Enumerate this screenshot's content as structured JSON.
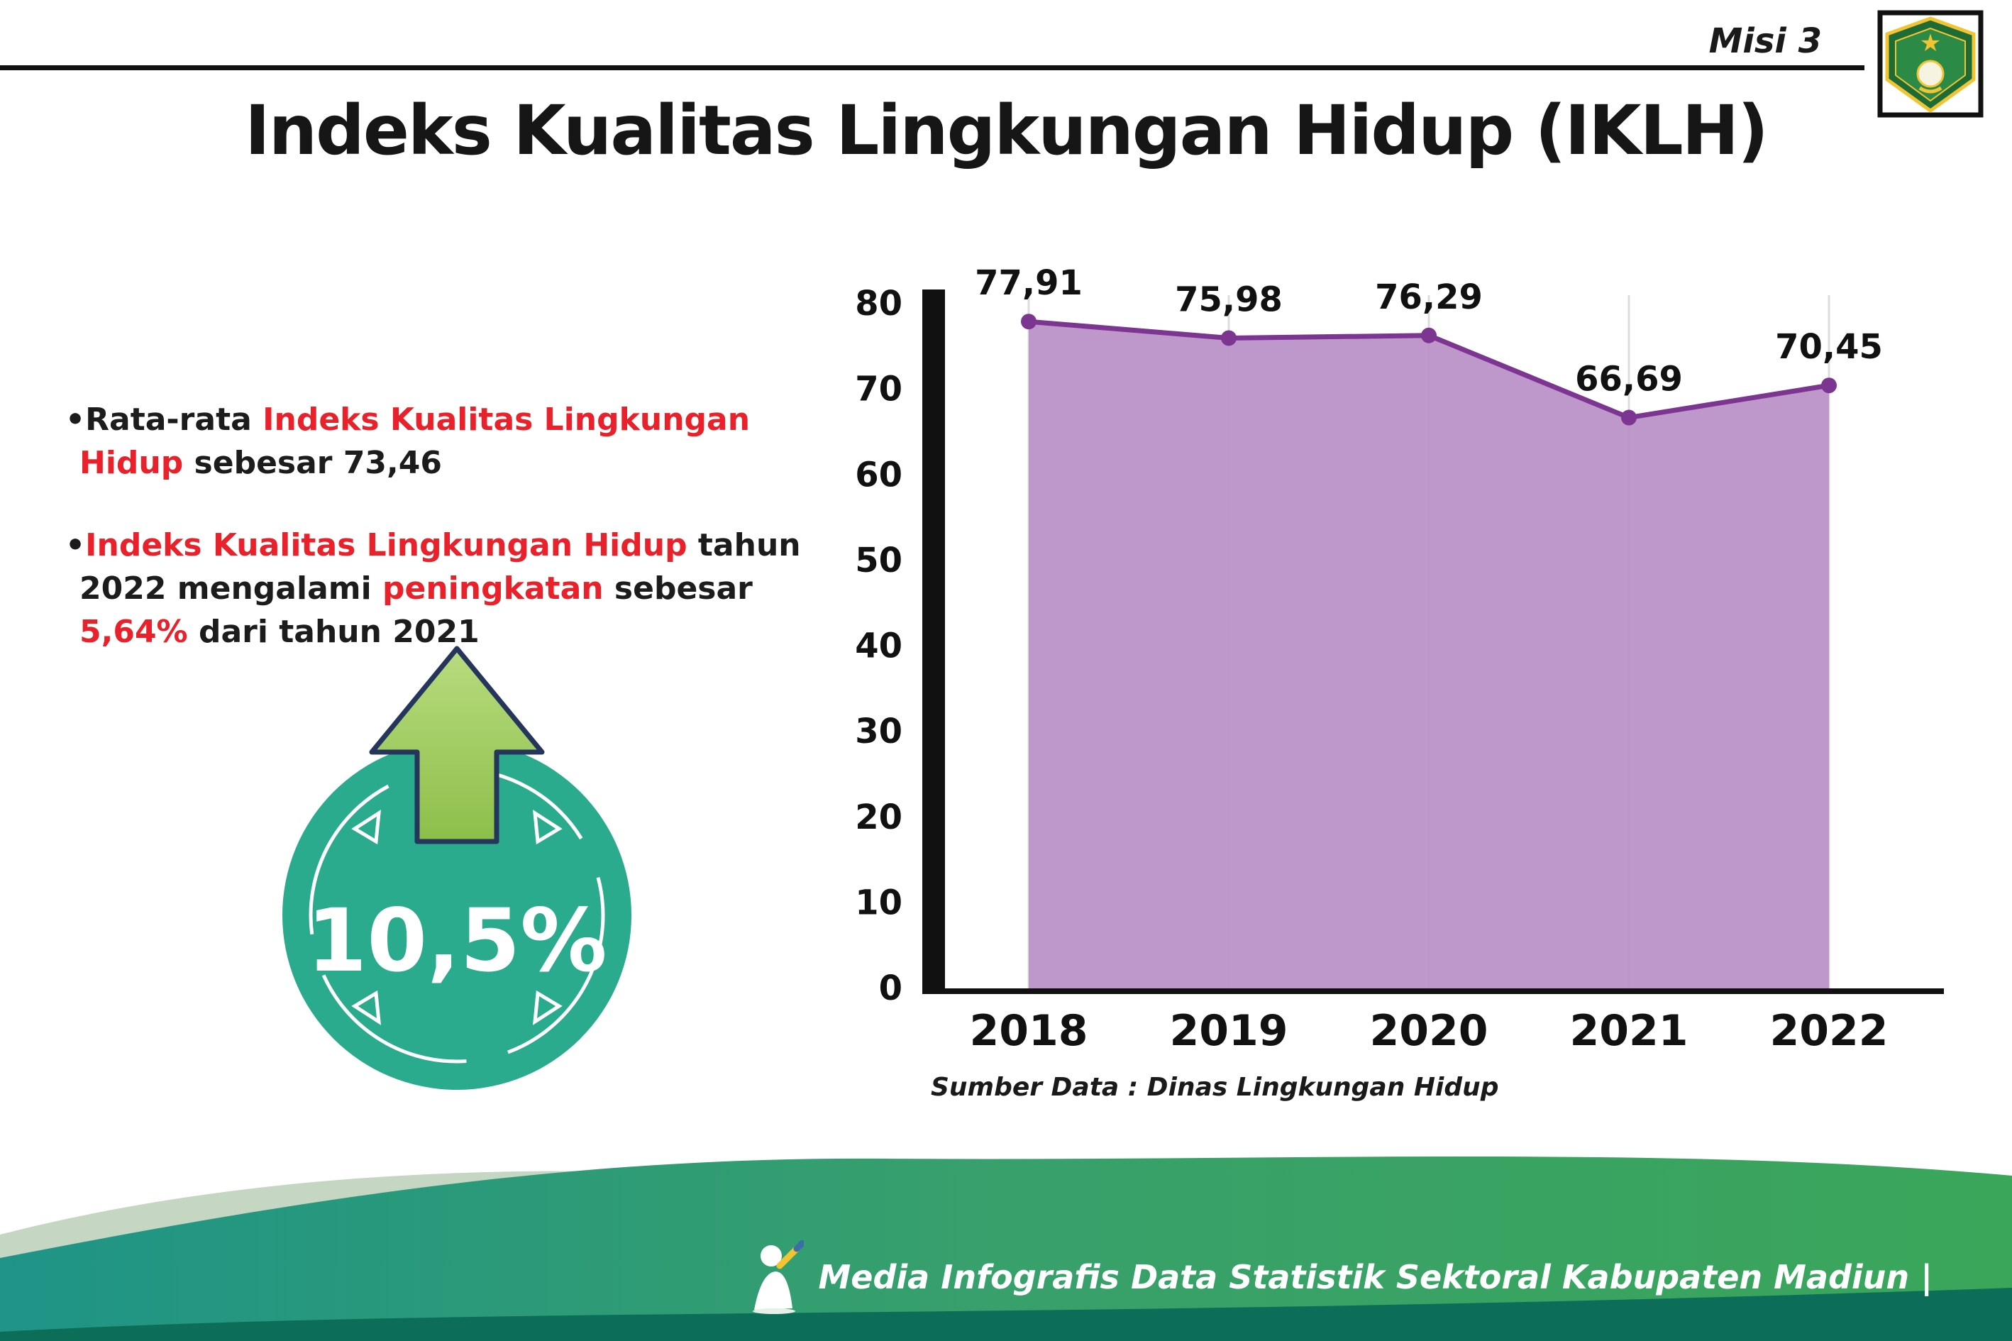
{
  "header": {
    "misi_label": "Misi 3",
    "title": "Indeks Kualitas Lingkungan Hidup (IKLH)",
    "logo_icon": "kabupaten-madiun-crest"
  },
  "bullets": {
    "bullet_glyph": "•",
    "b1_parts": [
      {
        "t": "Rata-rata "
      },
      {
        "t": "Indeks Kualitas Lingkungan Hidup"
      },
      {
        "t": " sebesar 73,46"
      }
    ],
    "b2_parts": [
      {
        "t": "Indeks Kualitas Lingkungan Hidup"
      },
      {
        "t": " tahun 2022 mengalami "
      },
      {
        "t": "peningkatan"
      },
      {
        "t": " sebesar "
      },
      {
        "t": "5,64%"
      },
      {
        "t": " dari tahun 2021"
      }
    ]
  },
  "badge": {
    "value": "10,5%",
    "icon": "up-arrow-icon",
    "circle_color": "#2bab8d",
    "arrow_color": "#a4cf5d"
  },
  "chart_data": {
    "type": "area",
    "title": "",
    "categories": [
      "2018",
      "2019",
      "2020",
      "2021",
      "2022"
    ],
    "values": [
      77.91,
      75.98,
      76.29,
      66.69,
      70.45
    ],
    "point_labels": [
      "77,91",
      "75,98",
      "76,29",
      "66,69",
      "70,45"
    ],
    "xlabel": "",
    "ylabel": "",
    "ylim": [
      0,
      80
    ],
    "ytick_step": 10,
    "grid": "vertical-light",
    "legend": "none",
    "fill_color": "#b88fc6",
    "line_color": "#7c3590",
    "source_note": "Sumber Data : Dinas Lingkungan Hidup"
  },
  "footer": {
    "credit": "Media Infografis Data Statistik Sektoral Kabupaten Madiun |"
  },
  "colors": {
    "accent_red": "#e8212b",
    "axis_black": "#111111",
    "footer_teal": "#1f9487",
    "footer_green": "#3aa65a",
    "footer_dark": "#0c6e58"
  }
}
